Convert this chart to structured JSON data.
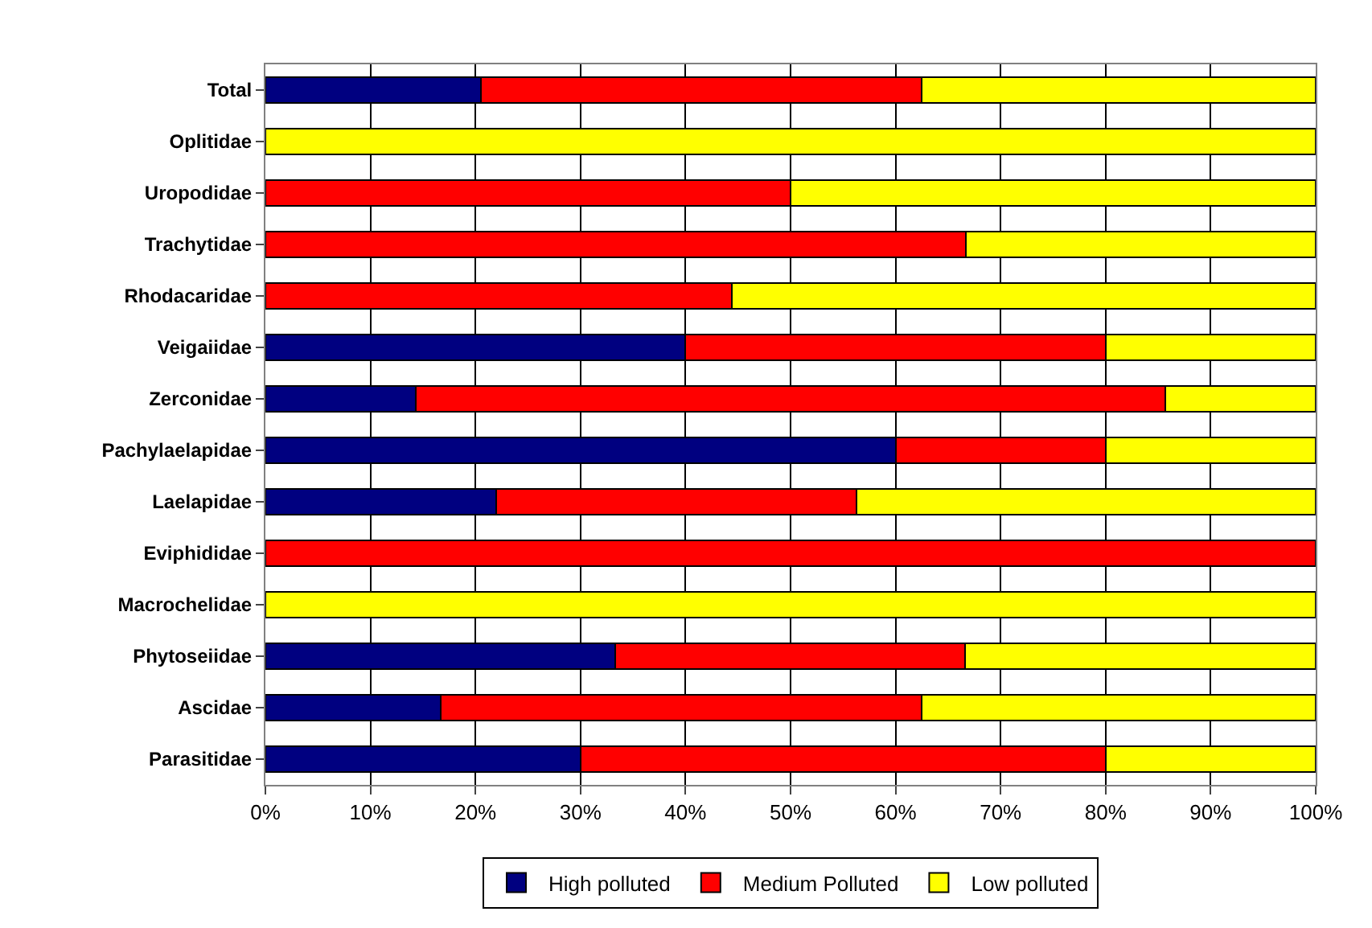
{
  "chart_data": {
    "type": "bar",
    "orientation": "horizontal",
    "stacked": true,
    "categories": [
      "Total",
      "Oplitidae",
      "Uropodidae",
      "Trachytidae",
      "Rhodacaridae",
      "Veigaiidae",
      "Zerconidae",
      "Pachylaelapidae",
      "Laelapidae",
      "Eviphididae",
      "Macrochelidae",
      "Phytoseiidae",
      "Ascidae",
      "Parasitidae"
    ],
    "series": [
      {
        "name": "High polluted",
        "color": "#000080",
        "values": [
          20.5,
          null,
          null,
          null,
          null,
          40,
          14.3,
          60,
          22,
          null,
          null,
          33.3,
          16.7,
          30
        ]
      },
      {
        "name": "Medium Polluted",
        "color": "#ff0000",
        "values": [
          42,
          null,
          50,
          66.7,
          44.4,
          40,
          71.4,
          20,
          34.3,
          100,
          null,
          33.3,
          45.8,
          50
        ]
      },
      {
        "name": "Low polluted",
        "color": "#ffff00",
        "values": [
          37.5,
          100,
          50,
          33.3,
          55.6,
          20,
          14.3,
          20,
          43.7,
          null,
          100,
          33.4,
          37.5,
          20
        ]
      }
    ],
    "xlim": [
      0,
      100
    ],
    "xticks": [
      {
        "value": 0,
        "label": "0%"
      },
      {
        "value": 10,
        "label": "10%"
      },
      {
        "value": 20,
        "label": "20%"
      },
      {
        "value": 30,
        "label": "30%"
      },
      {
        "value": 40,
        "label": "40%"
      },
      {
        "value": 50,
        "label": "50%"
      },
      {
        "value": 60,
        "label": "60%"
      },
      {
        "value": 70,
        "label": "70%"
      },
      {
        "value": 80,
        "label": "80%"
      },
      {
        "value": 90,
        "label": "90%"
      },
      {
        "value": 100,
        "label": "100%"
      }
    ],
    "grid": "x",
    "legend": "bottom"
  }
}
